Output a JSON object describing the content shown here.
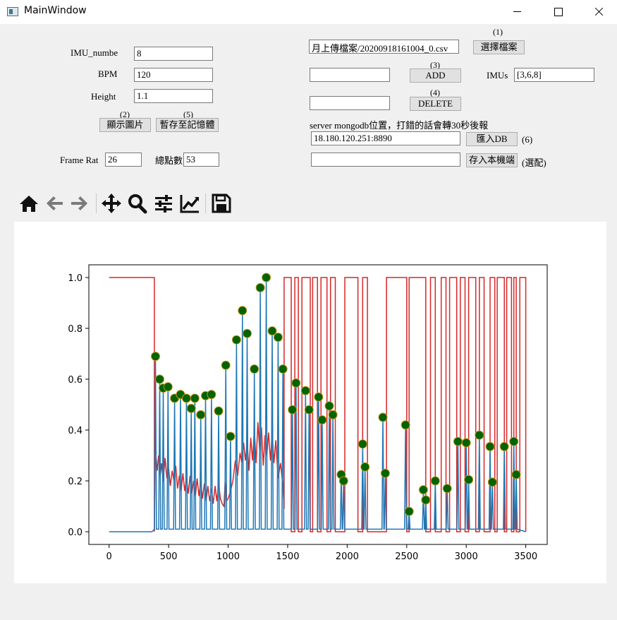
{
  "window": {
    "title": "MainWindow"
  },
  "form": {
    "imu_number": {
      "label": "IMU_numbe",
      "value": "8"
    },
    "bpm": {
      "label": "BPM",
      "value": "120"
    },
    "height": {
      "label": "Height",
      "value": "1.1"
    },
    "show_image": {
      "caption": "(2)",
      "label": "顯示圖片"
    },
    "save_memory": {
      "caption": "(5)",
      "label": "暫存至記憶體"
    },
    "frame_rate": {
      "label": "Frame Rat",
      "value": "26"
    },
    "total_points": {
      "label": "總點數",
      "value": "53"
    },
    "file_path": {
      "value": "月上傳檔案/20200918161004_0.csv"
    },
    "choose_file": {
      "caption": "(1)",
      "label": "選擇檔案"
    },
    "add": {
      "caption": "(3)",
      "label": "ADD",
      "input_value": ""
    },
    "imus": {
      "label": "IMUs",
      "value": "[3,6,8]"
    },
    "delete": {
      "caption": "(4)",
      "label": "DELETE",
      "input_value": ""
    },
    "server_note": "server mongodb位置，打錯的話會轉30秒後報",
    "server_address": {
      "value": "18.180.120.251:8890"
    },
    "import_db": {
      "label": "匯入DB",
      "caption": "(6)"
    },
    "save_local": {
      "label": "存入本機端",
      "caption": "(選配)",
      "input_value": ""
    }
  },
  "toolbar": {
    "icons": [
      "home-icon",
      "back-icon",
      "forward-icon",
      "pan-icon",
      "zoom-icon",
      "configure-subplots-icon",
      "edit-axis-icon",
      "save-icon"
    ]
  },
  "colors": {
    "red_series": "#d62728",
    "blue_series": "#1f77b4",
    "marker_face": "#006400",
    "marker_edge": "#c8961e"
  },
  "chart_data": {
    "type": "line",
    "xlim": [
      -170,
      3680
    ],
    "ylim": [
      -0.05,
      1.05
    ],
    "xticks": [
      0,
      500,
      1000,
      1500,
      2000,
      2500,
      3000,
      3500
    ],
    "yticks": [
      0.0,
      0.2,
      0.4,
      0.6,
      0.8,
      1.0
    ],
    "xtick_labels": [
      "0",
      "500",
      "1000",
      "1500",
      "2000",
      "2500",
      "3000",
      "3500"
    ],
    "ytick_labels": [
      "0.0",
      "0.2",
      "0.4",
      "0.6",
      "0.8",
      "1.0"
    ],
    "grid": false,
    "series": [
      {
        "color": "#d62728",
        "points": [
          [
            0,
            1.0
          ],
          [
            380,
            1.0
          ],
          [
            380,
            0.0
          ],
          [
            385,
            0.25
          ],
          [
            395,
            0.29
          ],
          [
            405,
            0.24
          ],
          [
            415,
            0.3
          ],
          [
            430,
            0.22
          ],
          [
            440,
            0.27
          ],
          [
            455,
            0.2
          ],
          [
            470,
            0.29
          ],
          [
            485,
            0.21
          ],
          [
            500,
            0.25
          ],
          [
            515,
            0.18
          ],
          [
            530,
            0.24
          ],
          [
            545,
            0.2
          ],
          [
            560,
            0.26
          ],
          [
            575,
            0.17
          ],
          [
            590,
            0.22
          ],
          [
            605,
            0.16
          ],
          [
            620,
            0.23
          ],
          [
            635,
            0.16
          ],
          [
            650,
            0.21
          ],
          [
            665,
            0.15
          ],
          [
            680,
            0.22
          ],
          [
            695,
            0.15
          ],
          [
            710,
            0.2
          ],
          [
            725,
            0.14
          ],
          [
            740,
            0.21
          ],
          [
            755,
            0.14
          ],
          [
            770,
            0.2
          ],
          [
            785,
            0.13
          ],
          [
            800,
            0.19
          ],
          [
            815,
            0.12
          ],
          [
            830,
            0.18
          ],
          [
            845,
            0.12
          ],
          [
            860,
            0.17
          ],
          [
            875,
            0.11
          ],
          [
            890,
            0.18
          ],
          [
            905,
            0.12
          ],
          [
            920,
            0.19
          ],
          [
            935,
            0.13
          ],
          [
            950,
            0.11
          ],
          [
            965,
            0.1
          ],
          [
            975,
            0.2
          ],
          [
            985,
            0.12
          ],
          [
            1000,
            0.13
          ],
          [
            1020,
            0.16
          ],
          [
            1040,
            0.2
          ],
          [
            1060,
            0.28
          ],
          [
            1080,
            0.22
          ],
          [
            1100,
            0.31
          ],
          [
            1115,
            0.27
          ],
          [
            1130,
            0.35
          ],
          [
            1145,
            0.28
          ],
          [
            1160,
            0.35
          ],
          [
            1175,
            0.24
          ],
          [
            1190,
            0.37
          ],
          [
            1205,
            0.28
          ],
          [
            1220,
            0.4
          ],
          [
            1235,
            0.27
          ],
          [
            1250,
            0.43
          ],
          [
            1265,
            0.32
          ],
          [
            1280,
            0.41
          ],
          [
            1295,
            0.26
          ],
          [
            1310,
            0.38
          ],
          [
            1325,
            0.3
          ],
          [
            1340,
            0.39
          ],
          [
            1355,
            0.28
          ],
          [
            1370,
            0.39
          ],
          [
            1385,
            0.27
          ],
          [
            1400,
            0.36
          ],
          [
            1420,
            0.21
          ],
          [
            1440,
            0.27
          ],
          [
            1460,
            0.18
          ],
          [
            1470,
            0.09
          ],
          [
            1470,
            1.0
          ],
          [
            1530,
            1.0
          ],
          [
            1530,
            0.0
          ],
          [
            1560,
            0.0
          ],
          [
            1560,
            1.0
          ],
          [
            1590,
            1.0
          ],
          [
            1590,
            0.0
          ],
          [
            1620,
            0.0
          ],
          [
            1620,
            1.0
          ],
          [
            1690,
            1.0
          ],
          [
            1690,
            0.0
          ],
          [
            1710,
            0.0
          ],
          [
            1710,
            1.0
          ],
          [
            1750,
            1.0
          ],
          [
            1750,
            0.0
          ],
          [
            1780,
            0.0
          ],
          [
            1780,
            1.0
          ],
          [
            1830,
            1.0
          ],
          [
            1830,
            0.0
          ],
          [
            1860,
            0.0
          ],
          [
            1860,
            1.0
          ],
          [
            1900,
            1.0
          ],
          [
            1900,
            0.0
          ],
          [
            1980,
            0.0
          ],
          [
            1980,
            1.0
          ],
          [
            2090,
            1.0
          ],
          [
            2090,
            0.0
          ],
          [
            2130,
            0.0
          ],
          [
            2130,
            1.0
          ],
          [
            2170,
            1.0
          ],
          [
            2170,
            0.0
          ],
          [
            2330,
            0.0
          ],
          [
            2330,
            1.0
          ],
          [
            2500,
            1.0
          ],
          [
            2500,
            0.0
          ],
          [
            2520,
            0.0
          ],
          [
            2520,
            1.0
          ],
          [
            2660,
            1.0
          ],
          [
            2660,
            0.0
          ],
          [
            2700,
            0.0
          ],
          [
            2700,
            1.0
          ],
          [
            2740,
            1.0
          ],
          [
            2740,
            0.0
          ],
          [
            2790,
            0.0
          ],
          [
            2790,
            1.0
          ],
          [
            2830,
            1.0
          ],
          [
            2830,
            0.0
          ],
          [
            2860,
            0.0
          ],
          [
            2860,
            1.0
          ],
          [
            2920,
            1.0
          ],
          [
            2920,
            0.0
          ],
          [
            2950,
            0.0
          ],
          [
            2950,
            1.0
          ],
          [
            2990,
            1.0
          ],
          [
            2990,
            0.0
          ],
          [
            3020,
            0.0
          ],
          [
            3020,
            1.0
          ],
          [
            3080,
            1.0
          ],
          [
            3080,
            0.0
          ],
          [
            3110,
            0.0
          ],
          [
            3110,
            1.0
          ],
          [
            3150,
            1.0
          ],
          [
            3150,
            0.0
          ],
          [
            3200,
            0.0
          ],
          [
            3200,
            1.0
          ],
          [
            3240,
            1.0
          ],
          [
            3240,
            0.0
          ],
          [
            3260,
            0.0
          ],
          [
            3260,
            1.0
          ],
          [
            3320,
            1.0
          ],
          [
            3320,
            0.0
          ],
          [
            3340,
            0.0
          ],
          [
            3340,
            1.0
          ],
          [
            3380,
            1.0
          ],
          [
            3380,
            0.0
          ],
          [
            3400,
            0.0
          ],
          [
            3400,
            1.0
          ],
          [
            3420,
            1.0
          ],
          [
            3420,
            0.0
          ],
          [
            3450,
            0.0
          ],
          [
            3450,
            1.0
          ],
          [
            3500,
            1.0
          ],
          [
            3500,
            0.0
          ]
        ]
      },
      {
        "color": "#1f77b4",
        "baseline": [
          [
            0,
            0.0
          ],
          [
            360,
            0.0
          ],
          [
            380,
            0.01
          ]
        ],
        "peaks": [
          [
            390,
            0.69
          ],
          [
            425,
            0.6
          ],
          [
            455,
            0.565
          ],
          [
            495,
            0.57
          ],
          [
            550,
            0.525
          ],
          [
            600,
            0.54
          ],
          [
            650,
            0.525
          ],
          [
            690,
            0.485
          ],
          [
            720,
            0.525
          ],
          [
            770,
            0.46
          ],
          [
            810,
            0.535
          ],
          [
            860,
            0.54
          ],
          [
            920,
            0.475
          ],
          [
            980,
            0.655
          ],
          [
            1020,
            0.375
          ],
          [
            1070,
            0.755
          ],
          [
            1120,
            0.87
          ],
          [
            1160,
            0.78
          ],
          [
            1220,
            0.64
          ],
          [
            1270,
            0.96
          ],
          [
            1320,
            1.0
          ],
          [
            1370,
            0.79
          ],
          [
            1420,
            0.765
          ],
          [
            1460,
            0.64
          ],
          [
            1540,
            0.48
          ],
          [
            1570,
            0.585
          ],
          [
            1650,
            0.555
          ],
          [
            1680,
            0.48
          ],
          [
            1760,
            0.53
          ],
          [
            1790,
            0.44
          ],
          [
            1850,
            0.495
          ],
          [
            1880,
            0.46
          ],
          [
            1950,
            0.225
          ],
          [
            1970,
            0.2
          ],
          [
            2130,
            0.345
          ],
          [
            2150,
            0.255
          ],
          [
            2300,
            0.45
          ],
          [
            2320,
            0.23
          ],
          [
            2490,
            0.42
          ],
          [
            2520,
            0.08
          ],
          [
            2640,
            0.165
          ],
          [
            2660,
            0.125
          ],
          [
            2740,
            0.2
          ],
          [
            2840,
            0.17
          ],
          [
            2930,
            0.355
          ],
          [
            3000,
            0.35
          ],
          [
            3020,
            0.205
          ],
          [
            3110,
            0.38
          ],
          [
            3200,
            0.335
          ],
          [
            3220,
            0.195
          ],
          [
            3320,
            0.335
          ],
          [
            3400,
            0.355
          ],
          [
            3420,
            0.225
          ]
        ]
      }
    ],
    "markers": [
      [
        390,
        0.69
      ],
      [
        425,
        0.6
      ],
      [
        455,
        0.565
      ],
      [
        495,
        0.57
      ],
      [
        550,
        0.525
      ],
      [
        600,
        0.54
      ],
      [
        650,
        0.525
      ],
      [
        690,
        0.485
      ],
      [
        720,
        0.525
      ],
      [
        770,
        0.46
      ],
      [
        810,
        0.535
      ],
      [
        860,
        0.54
      ],
      [
        920,
        0.475
      ],
      [
        980,
        0.655
      ],
      [
        1020,
        0.375
      ],
      [
        1070,
        0.755
      ],
      [
        1120,
        0.87
      ],
      [
        1160,
        0.78
      ],
      [
        1220,
        0.64
      ],
      [
        1270,
        0.96
      ],
      [
        1320,
        1.0
      ],
      [
        1370,
        0.79
      ],
      [
        1420,
        0.765
      ],
      [
        1460,
        0.64
      ],
      [
        1540,
        0.48
      ],
      [
        1570,
        0.585
      ],
      [
        1650,
        0.555
      ],
      [
        1680,
        0.48
      ],
      [
        1760,
        0.53
      ],
      [
        1790,
        0.44
      ],
      [
        1850,
        0.495
      ],
      [
        1880,
        0.46
      ],
      [
        1950,
        0.225
      ],
      [
        1970,
        0.2
      ],
      [
        2130,
        0.345
      ],
      [
        2150,
        0.255
      ],
      [
        2300,
        0.45
      ],
      [
        2320,
        0.23
      ],
      [
        2490,
        0.42
      ],
      [
        2520,
        0.08
      ],
      [
        2640,
        0.165
      ],
      [
        2660,
        0.125
      ],
      [
        2740,
        0.2
      ],
      [
        2840,
        0.17
      ],
      [
        2930,
        0.355
      ],
      [
        3000,
        0.35
      ],
      [
        3020,
        0.205
      ],
      [
        3110,
        0.38
      ],
      [
        3200,
        0.335
      ],
      [
        3220,
        0.195
      ],
      [
        3320,
        0.335
      ],
      [
        3400,
        0.355
      ],
      [
        3420,
        0.225
      ]
    ]
  }
}
